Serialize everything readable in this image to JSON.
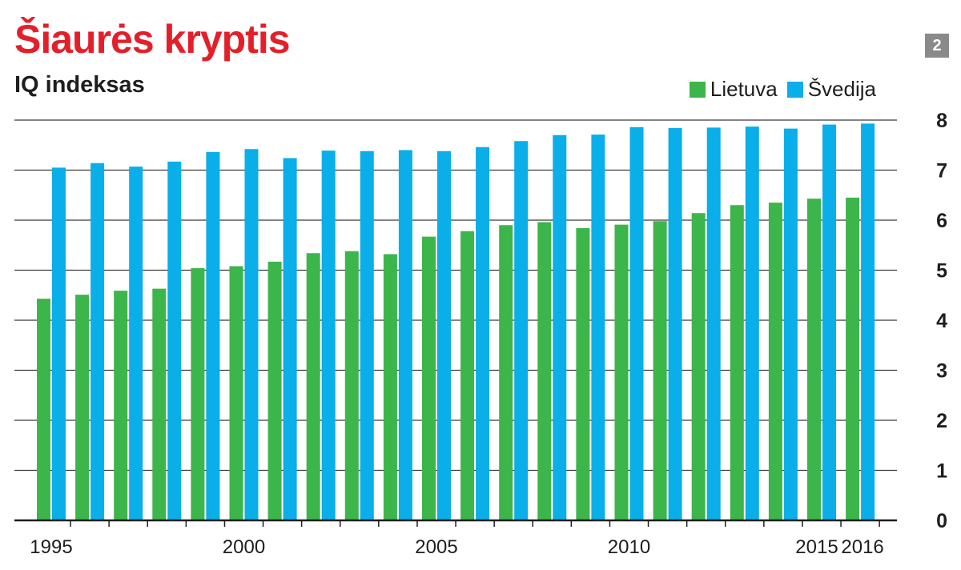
{
  "header": {
    "title": "Šiaurės kryptis",
    "subtitle": "IQ indeksas",
    "badge": "2"
  },
  "colors": {
    "title": "#e3202a",
    "lietuva": "#3cb54a",
    "svedija": "#0aaee8",
    "grid": "#3a3a3a",
    "badge": "#8a8a8a"
  },
  "chart_data": {
    "type": "bar",
    "categories": [
      "1995",
      "1996",
      "1997",
      "1998",
      "1999",
      "2000",
      "2001",
      "2002",
      "2003",
      "2004",
      "2005",
      "2006",
      "2007",
      "2008",
      "2009",
      "2010",
      "2011",
      "2012",
      "2013",
      "2014",
      "2015",
      "2016"
    ],
    "series": [
      {
        "name": "Lietuva",
        "values": [
          4.43,
          4.51,
          4.59,
          4.63,
          5.04,
          5.08,
          5.17,
          5.34,
          5.38,
          5.32,
          5.67,
          5.78,
          5.9,
          5.96,
          5.84,
          5.91,
          5.98,
          6.14,
          6.3,
          6.35,
          6.43,
          6.45
        ]
      },
      {
        "name": "Švedija",
        "values": [
          7.05,
          7.14,
          7.07,
          7.17,
          7.36,
          7.42,
          7.24,
          7.39,
          7.38,
          7.4,
          7.38,
          7.46,
          7.58,
          7.7,
          7.71,
          7.86,
          7.84,
          7.85,
          7.87,
          7.83,
          7.91,
          7.93
        ]
      }
    ],
    "x_tick_labels": [
      "1995",
      "2000",
      "2005",
      "2010",
      "2015",
      "2016"
    ],
    "y_ticks": [
      0,
      1,
      2,
      3,
      4,
      5,
      6,
      7,
      8
    ],
    "ylim": [
      0,
      8
    ],
    "grid": true,
    "y_axis_position": "right",
    "legend_position": "top-right"
  }
}
